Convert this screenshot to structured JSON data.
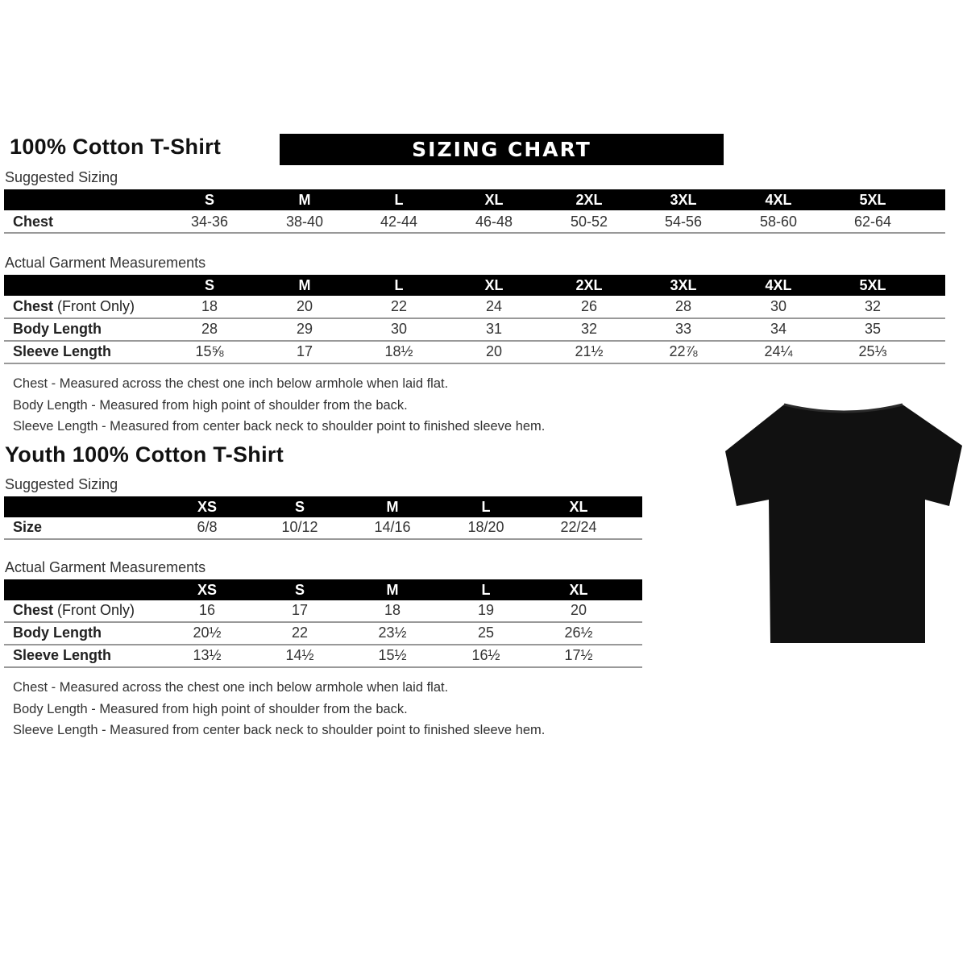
{
  "adult": {
    "title": "100% Cotton T-Shirt",
    "banner": "SIZING CHART",
    "suggested": {
      "label": "Suggested Sizing",
      "sizes": [
        "S",
        "M",
        "L",
        "XL",
        "2XL",
        "3XL",
        "4XL",
        "5XL"
      ],
      "rows": [
        {
          "label": "Chest",
          "values": [
            "34-36",
            "38-40",
            "42-44",
            "46-48",
            "50-52",
            "54-56",
            "58-60",
            "62-64"
          ]
        }
      ]
    },
    "actual": {
      "label": "Actual Garment Measurements",
      "sizes": [
        "S",
        "M",
        "L",
        "XL",
        "2XL",
        "3XL",
        "4XL",
        "5XL"
      ],
      "rows": [
        {
          "label": "Chest",
          "label_suffix": " (Front Only)",
          "values": [
            "18",
            "20",
            "22",
            "24",
            "26",
            "28",
            "30",
            "32"
          ]
        },
        {
          "label": "Body Length",
          "values": [
            "28",
            "29",
            "30",
            "31",
            "32",
            "33",
            "34",
            "35"
          ]
        },
        {
          "label": "Sleeve Length",
          "values": [
            "15⅝",
            "17",
            "18½",
            "20",
            "21½",
            "22⅞",
            "24¼",
            "25⅓"
          ]
        }
      ]
    },
    "notes": [
      "Chest - Measured across the chest one inch below armhole when laid flat.",
      "Body Length - Measured from high point of shoulder from the back.",
      "Sleeve Length - Measured from center back neck to shoulder point to finished sleeve hem."
    ]
  },
  "youth": {
    "title": "Youth 100% Cotton T-Shirt",
    "suggested": {
      "label": "Suggested Sizing",
      "sizes": [
        "XS",
        "S",
        "M",
        "L",
        "XL"
      ],
      "rows": [
        {
          "label": "Size",
          "values": [
            "6/8",
            "10/12",
            "14/16",
            "18/20",
            "22/24"
          ]
        }
      ]
    },
    "actual": {
      "label": "Actual Garment Measurements",
      "sizes": [
        "XS",
        "S",
        "M",
        "L",
        "XL"
      ],
      "rows": [
        {
          "label": "Chest",
          "label_suffix": " (Front Only)",
          "values": [
            "16",
            "17",
            "18",
            "19",
            "20"
          ]
        },
        {
          "label": "Body Length",
          "values": [
            "20½",
            "22",
            "23½",
            "25",
            "26½"
          ]
        },
        {
          "label": "Sleeve Length",
          "values": [
            "13½",
            "14½",
            "15½",
            "16½",
            "17½"
          ]
        }
      ]
    },
    "notes": [
      "Chest - Measured across the chest one inch below armhole when laid flat.",
      "Body Length - Measured from high point of shoulder from the back.",
      "Sleeve Length - Measured from center back neck to shoulder point to finished sleeve hem."
    ]
  },
  "colors": {
    "header_bar": "#000000",
    "rule": "#999999",
    "shirt": "#111111"
  },
  "icons": {
    "product": "black-tshirt-icon"
  }
}
